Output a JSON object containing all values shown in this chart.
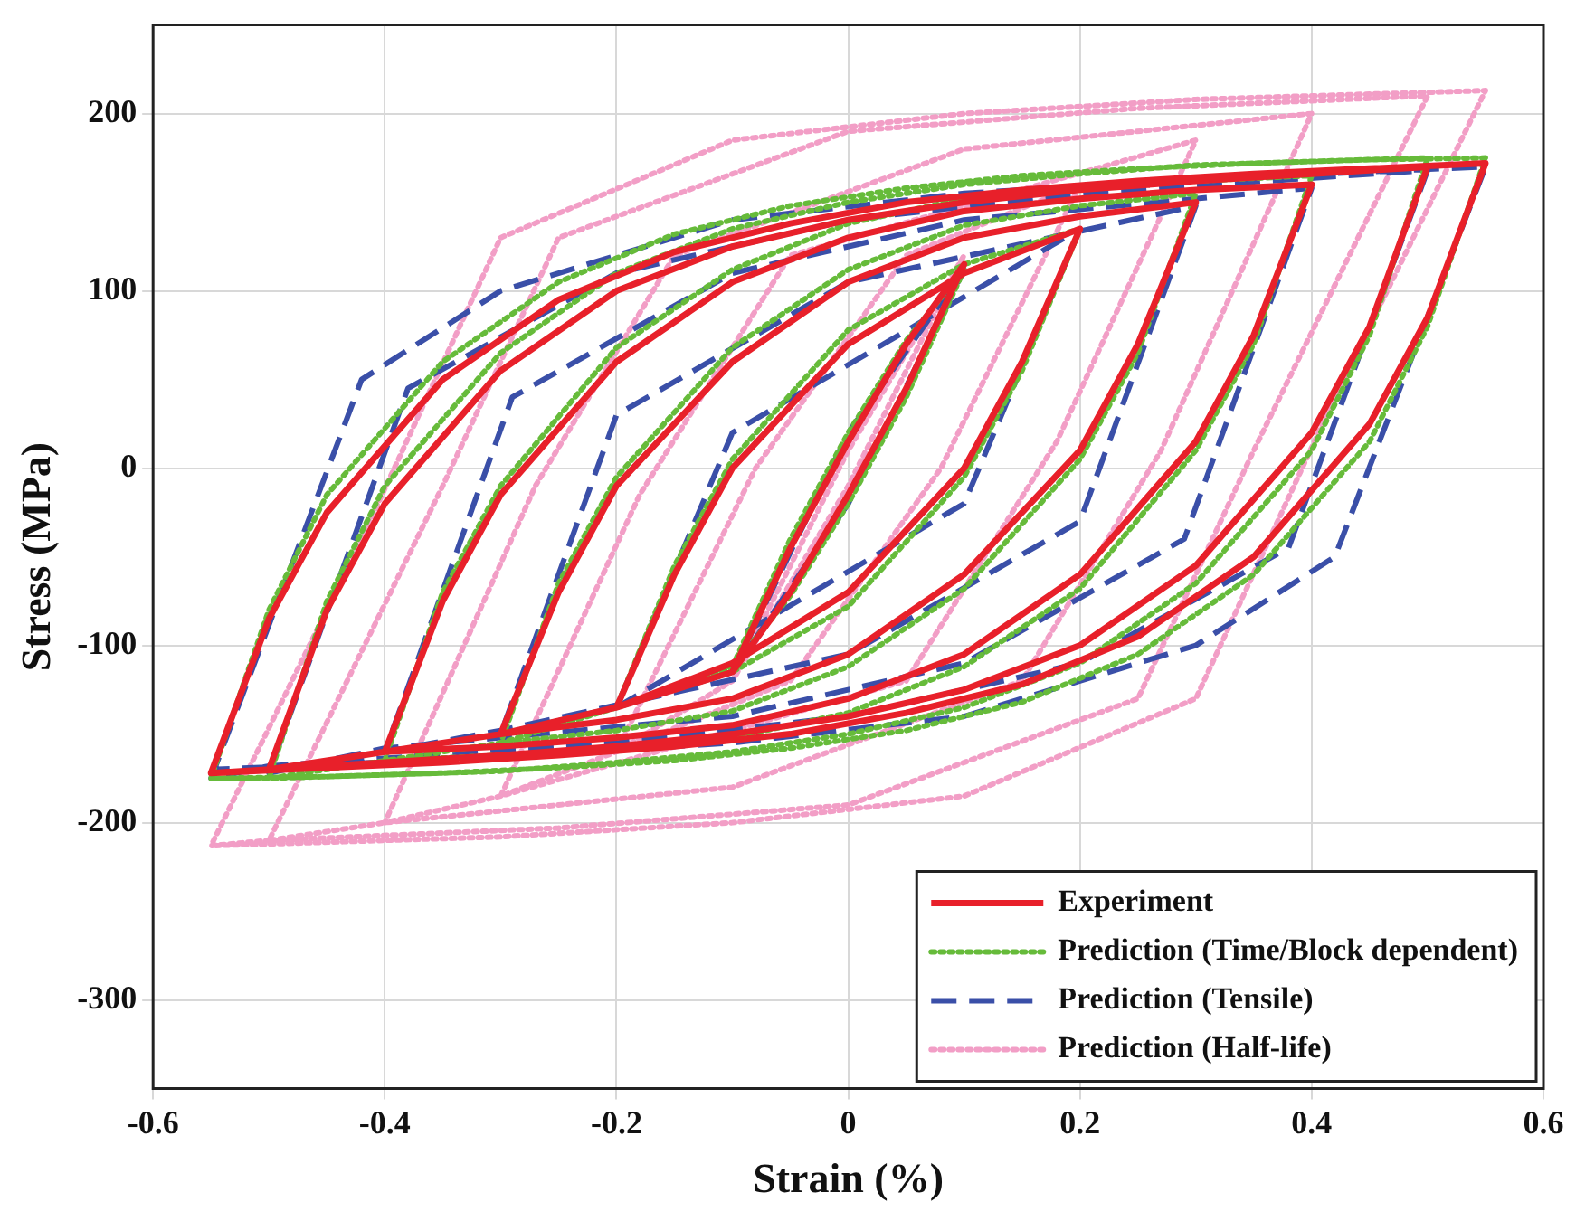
{
  "chart_data": {
    "type": "line",
    "xlabel": "Strain (%)",
    "ylabel": "Stress (MPa)",
    "xlim": [
      -0.6,
      0.6
    ],
    "xticks": [
      -0.6,
      -0.4,
      -0.2,
      0,
      0.2,
      0.4,
      0.6
    ],
    "ylim": [
      -350,
      250
    ],
    "yticks": [
      -300,
      -200,
      -100,
      0,
      100,
      200
    ],
    "grid": true,
    "legend": "bottom right",
    "marker": "none",
    "series": [
      {
        "name": "Experiment",
        "color": "#e8202a",
        "line_style": "solid",
        "x": [
          -0.1,
          -0.05,
          0,
          0.05,
          0.1,
          0.05,
          0,
          -0.05,
          -0.1,
          -0.2,
          -0.15,
          -0.1,
          0,
          0.1,
          0.2,
          0.15,
          0.1,
          0,
          -0.1,
          -0.2,
          -0.3,
          -0.25,
          -0.2,
          -0.1,
          0,
          0.1,
          0.2,
          0.3,
          0.25,
          0.2,
          0.1,
          0,
          -0.1,
          -0.2,
          -0.3,
          -0.4,
          -0.35,
          -0.3,
          -0.2,
          -0.1,
          0,
          0.1,
          0.2,
          0.3,
          0.4,
          0.35,
          0.3,
          0.2,
          0.1,
          0,
          -0.1,
          -0.2,
          -0.3,
          -0.4,
          -0.5,
          -0.45,
          -0.4,
          -0.3,
          -0.2,
          -0.1,
          0,
          0.1,
          0.2,
          0.3,
          0.4,
          0.5,
          0.45,
          0.4,
          0.3,
          0.2,
          0.1,
          0,
          -0.1,
          -0.2,
          -0.3,
          -0.4,
          -0.5,
          -0.55,
          -0.5,
          -0.45,
          -0.35,
          -0.25,
          -0.15,
          -0.05,
          0.05,
          0.15,
          0.25,
          0.35,
          0.45,
          0.55,
          0.5,
          0.45,
          0.35,
          0.25,
          0.15,
          0.05,
          -0.05,
          -0.15,
          -0.25,
          -0.35,
          -0.45,
          -0.55
        ],
        "values": [
          -115,
          -45,
          15,
          70,
          115,
          45,
          -15,
          -70,
          -115,
          -135,
          -60,
          0,
          70,
          110,
          135,
          60,
          0,
          -70,
          -110,
          -135,
          -150,
          -70,
          -10,
          60,
          105,
          130,
          142,
          150,
          70,
          10,
          -60,
          -105,
          -130,
          -142,
          -150,
          -160,
          -75,
          -15,
          60,
          105,
          130,
          145,
          152,
          157,
          160,
          75,
          15,
          -60,
          -105,
          -130,
          -145,
          -152,
          -157,
          -160,
          -170,
          -80,
          -20,
          55,
          100,
          125,
          140,
          150,
          157,
          162,
          166,
          170,
          80,
          20,
          -55,
          -100,
          -125,
          -140,
          -150,
          -157,
          -162,
          -166,
          -170,
          -172,
          -85,
          -25,
          50,
          95,
          122,
          138,
          150,
          157,
          162,
          166,
          169,
          172,
          85,
          25,
          -50,
          -95,
          -122,
          -138,
          -150,
          -157,
          -162,
          -166,
          -169,
          -172
        ]
      },
      {
        "name": "Prediction (Time/Block dependent)",
        "color": "#66bb3a",
        "line_style": "dotted",
        "x": [
          -0.1,
          -0.05,
          0,
          0.05,
          0.1,
          0.05,
          0,
          -0.05,
          -0.1,
          -0.2,
          -0.15,
          -0.1,
          0,
          0.1,
          0.2,
          0.15,
          0.1,
          0,
          -0.1,
          -0.2,
          -0.3,
          -0.25,
          -0.2,
          -0.1,
          0,
          0.1,
          0.2,
          0.3,
          0.25,
          0.2,
          0.1,
          0,
          -0.1,
          -0.2,
          -0.3,
          -0.4,
          -0.35,
          -0.3,
          -0.2,
          -0.1,
          0,
          0.1,
          0.2,
          0.3,
          0.4,
          0.35,
          0.3,
          0.2,
          0.1,
          0,
          -0.1,
          -0.2,
          -0.3,
          -0.4,
          -0.5,
          -0.45,
          -0.4,
          -0.3,
          -0.2,
          -0.1,
          0,
          0.1,
          0.2,
          0.3,
          0.4,
          0.5,
          0.45,
          0.4,
          0.3,
          0.2,
          0.1,
          0,
          -0.1,
          -0.2,
          -0.3,
          -0.4,
          -0.5,
          -0.55,
          -0.5,
          -0.45,
          -0.35,
          -0.25,
          -0.15,
          -0.05,
          0.05,
          0.15,
          0.25,
          0.35,
          0.45,
          0.55,
          0.5,
          0.45,
          0.35,
          0.25,
          0.15,
          0.05,
          -0.05,
          -0.15,
          -0.25,
          -0.35,
          -0.45,
          -0.55
        ],
        "values": [
          -112,
          -40,
          20,
          72,
          112,
          40,
          -20,
          -72,
          -112,
          -135,
          -55,
          5,
          78,
          115,
          135,
          55,
          -5,
          -78,
          -115,
          -135,
          -155,
          -65,
          -5,
          68,
          112,
          137,
          148,
          155,
          65,
          5,
          -68,
          -112,
          -137,
          -148,
          -155,
          -165,
          -70,
          -10,
          68,
          112,
          138,
          152,
          158,
          162,
          165,
          70,
          10,
          -68,
          -112,
          -138,
          -152,
          -158,
          -162,
          -165,
          -175,
          -75,
          -10,
          65,
          110,
          135,
          150,
          160,
          166,
          171,
          173,
          175,
          75,
          10,
          -65,
          -110,
          -135,
          -150,
          -160,
          -166,
          -171,
          -173,
          -175,
          -175,
          -80,
          -15,
          60,
          105,
          132,
          148,
          158,
          165,
          169,
          172,
          174,
          175,
          80,
          15,
          -60,
          -105,
          -132,
          -148,
          -158,
          -165,
          -169,
          -172,
          -174,
          -175
        ]
      },
      {
        "name": "Prediction (Tensile)",
        "color": "#3a4fa8",
        "line_style": "dashed",
        "x": [
          -0.1,
          0,
          0.1,
          0,
          -0.1,
          -0.2,
          -0.1,
          0.2,
          0.1,
          -0.2,
          -0.3,
          -0.2,
          0,
          0.3,
          0.2,
          0,
          -0.3,
          -0.4,
          -0.29,
          -0.1,
          0.1,
          0.4,
          0.29,
          0.1,
          -0.1,
          -0.4,
          -0.5,
          -0.38,
          -0.2,
          0,
          0.2,
          0.5,
          0.38,
          0.2,
          0,
          -0.2,
          -0.5,
          -0.55,
          -0.42,
          -0.3,
          -0.1,
          0.1,
          0.3,
          0.55,
          0.42,
          0.3,
          0.1,
          -0.1,
          -0.3,
          -0.55
        ],
        "values": [
          -115,
          20,
          112,
          -20,
          -115,
          -135,
          20,
          135,
          -20,
          -135,
          -150,
          30,
          105,
          148,
          -30,
          -105,
          -148,
          -160,
          40,
          110,
          140,
          158,
          -40,
          -110,
          -140,
          -158,
          -172,
          45,
          110,
          140,
          155,
          168,
          -45,
          -110,
          -140,
          -155,
          -168,
          -175,
          50,
          100,
          140,
          155,
          163,
          170,
          -50,
          -100,
          -140,
          -155,
          -163,
          -170
        ]
      },
      {
        "name": "Prediction (Half-life)",
        "color": "#f29ec6",
        "line_style": "dotted",
        "x": [
          -0.1,
          0,
          0.1,
          0,
          -0.1,
          -0.2,
          -0.08,
          0.05,
          0.2,
          0.08,
          -0.05,
          -0.2,
          -0.3,
          -0.18,
          -0.05,
          0.3,
          0.18,
          0.05,
          -0.3,
          -0.4,
          -0.27,
          -0.15,
          0.1,
          0.4,
          0.27,
          0.15,
          -0.1,
          -0.4,
          -0.5,
          -0.35,
          -0.25,
          0,
          0.25,
          0.5,
          0.35,
          0.25,
          0,
          -0.25,
          -0.5,
          -0.55,
          -0.42,
          -0.3,
          -0.1,
          0.1,
          0.3,
          0.55,
          0.42,
          0.3,
          0.1,
          -0.1,
          -0.3,
          -0.55
        ],
        "values": [
          -120,
          10,
          120,
          -10,
          -120,
          -160,
          0,
          120,
          160,
          0,
          -120,
          -160,
          -185,
          -15,
          120,
          185,
          15,
          -120,
          -185,
          -200,
          -10,
          120,
          180,
          200,
          10,
          -120,
          -180,
          -200,
          -210,
          -10,
          130,
          190,
          203,
          210,
          10,
          -130,
          -190,
          -203,
          -210,
          -213,
          -40,
          130,
          185,
          200,
          208,
          213,
          40,
          -130,
          -185,
          -200,
          -208,
          -213
        ]
      }
    ]
  }
}
